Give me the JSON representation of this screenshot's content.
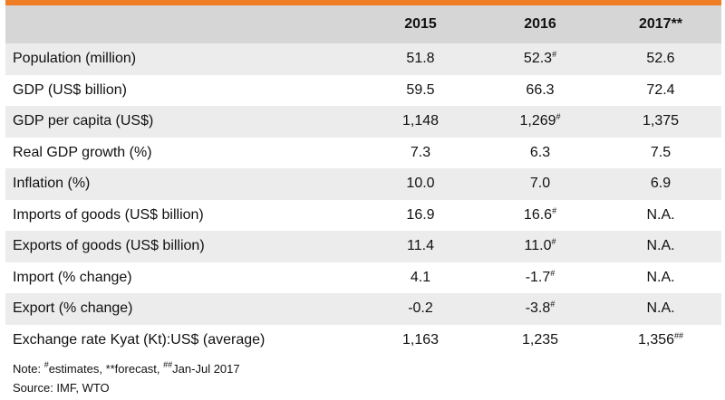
{
  "table": {
    "header_bar_color": "#ee7d25",
    "columns": [
      "",
      "2015",
      "2016",
      "2017**"
    ],
    "rows": [
      {
        "label": "Population (million)",
        "v2015": "51.8",
        "v2016": "52.3",
        "v2016_mark": "#",
        "v2017": "52.6",
        "v2017_mark": ""
      },
      {
        "label": "GDP (US$ billion)",
        "v2015": "59.5",
        "v2016": "66.3",
        "v2016_mark": "",
        "v2017": "72.4",
        "v2017_mark": ""
      },
      {
        "label": "GDP per capita (US$)",
        "v2015": "1,148",
        "v2016": "1,269",
        "v2016_mark": "#",
        "v2017": "1,375",
        "v2017_mark": ""
      },
      {
        "label": "Real GDP growth (%)",
        "v2015": "7.3",
        "v2016": "6.3",
        "v2016_mark": "",
        "v2017": "7.5",
        "v2017_mark": ""
      },
      {
        "label": "Inflation (%)",
        "v2015": "10.0",
        "v2016": "7.0",
        "v2016_mark": "",
        "v2017": "6.9",
        "v2017_mark": ""
      },
      {
        "label": "Imports of goods (US$ billion)",
        "v2015": "16.9",
        "v2016": "16.6",
        "v2016_mark": "#",
        "v2017": "N.A.",
        "v2017_mark": ""
      },
      {
        "label": "Exports of goods (US$ billion)",
        "v2015": "11.4",
        "v2016": "11.0",
        "v2016_mark": "#",
        "v2017": "N.A.",
        "v2017_mark": ""
      },
      {
        "label": "Import (% change)",
        "v2015": "4.1",
        "v2016": "-1.7",
        "v2016_mark": "#",
        "v2017": "N.A.",
        "v2017_mark": ""
      },
      {
        "label": "Export (% change)",
        "v2015": "-0.2",
        "v2016": "-3.8",
        "v2016_mark": "#",
        "v2017": "N.A.",
        "v2017_mark": ""
      },
      {
        "label": "Exchange rate Kyat (Kt):US$ (average)",
        "v2015": "1,163",
        "v2016": "1,235",
        "v2016_mark": "",
        "v2017": "1,356",
        "v2017_mark": "##"
      }
    ]
  },
  "notes": {
    "prefix": "Note: ",
    "mark1": "#",
    "text1": "estimates, ",
    "text2": "**forecast, ",
    "mark3": "##",
    "text3": "Jan-Jul 2017",
    "source": "Source: IMF, WTO"
  }
}
